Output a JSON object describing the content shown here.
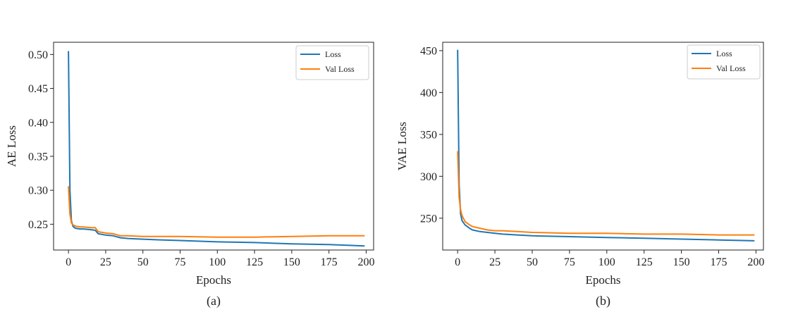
{
  "chart_data": [
    {
      "type": "line",
      "caption": "(a)",
      "xlabel": "Epochs",
      "ylabel": "AE Loss",
      "xlim": [
        -10,
        205
      ],
      "ylim": [
        0.212,
        0.518
      ],
      "xticks": [
        0,
        25,
        50,
        75,
        100,
        125,
        150,
        175,
        200
      ],
      "yticks": [
        0.25,
        0.3,
        0.35,
        0.4,
        0.45,
        0.5
      ],
      "ytick_labels": [
        "0.25",
        "0.30",
        "0.35",
        "0.40",
        "0.45",
        "0.50"
      ],
      "legend_position": "top-right",
      "series": [
        {
          "name": "Loss",
          "color": "#1f77b4",
          "x": [
            0,
            1,
            2,
            3,
            4,
            5,
            8,
            10,
            15,
            18,
            20,
            25,
            30,
            35,
            40,
            50,
            60,
            75,
            100,
            125,
            150,
            175,
            199
          ],
          "y": [
            0.505,
            0.3,
            0.255,
            0.247,
            0.245,
            0.244,
            0.243,
            0.243,
            0.242,
            0.241,
            0.236,
            0.234,
            0.233,
            0.23,
            0.229,
            0.228,
            0.227,
            0.226,
            0.224,
            0.223,
            0.221,
            0.22,
            0.218
          ]
        },
        {
          "name": "Val Loss",
          "color": "#ff7f0e",
          "x": [
            0,
            1,
            2,
            3,
            4,
            5,
            8,
            10,
            15,
            18,
            20,
            25,
            30,
            35,
            40,
            50,
            60,
            75,
            100,
            125,
            150,
            175,
            199
          ],
          "y": [
            0.306,
            0.265,
            0.252,
            0.249,
            0.248,
            0.247,
            0.246,
            0.246,
            0.245,
            0.245,
            0.239,
            0.237,
            0.236,
            0.233,
            0.233,
            0.232,
            0.232,
            0.232,
            0.231,
            0.231,
            0.232,
            0.233,
            0.233
          ]
        }
      ]
    },
    {
      "type": "line",
      "caption": "(b)",
      "xlabel": "Epochs",
      "ylabel": "VAE Loss",
      "xlim": [
        -10,
        205
      ],
      "ylim": [
        212,
        460
      ],
      "xticks": [
        0,
        25,
        50,
        75,
        100,
        125,
        150,
        175,
        200
      ],
      "yticks": [
        250,
        300,
        350,
        400,
        450
      ],
      "ytick_labels": [
        "250",
        "300",
        "350",
        "400",
        "450"
      ],
      "legend_position": "top-right",
      "series": [
        {
          "name": "Loss",
          "color": "#1f77b4",
          "x": [
            0,
            1,
            2,
            3,
            5,
            8,
            10,
            15,
            20,
            25,
            30,
            40,
            50,
            75,
            100,
            125,
            150,
            175,
            199
          ],
          "y": [
            451,
            290,
            255,
            247,
            242,
            238,
            236,
            234,
            233,
            232,
            231,
            230,
            229,
            228,
            227,
            226,
            225,
            224,
            223
          ]
        },
        {
          "name": "Val Loss",
          "color": "#ff7f0e",
          "x": [
            0,
            1,
            2,
            3,
            5,
            8,
            10,
            15,
            20,
            25,
            30,
            40,
            50,
            75,
            100,
            125,
            150,
            175,
            199
          ],
          "y": [
            330,
            275,
            260,
            253,
            246,
            242,
            240,
            238,
            236,
            235,
            235,
            234,
            233,
            232,
            232,
            231,
            231,
            230,
            230
          ]
        }
      ]
    }
  ]
}
